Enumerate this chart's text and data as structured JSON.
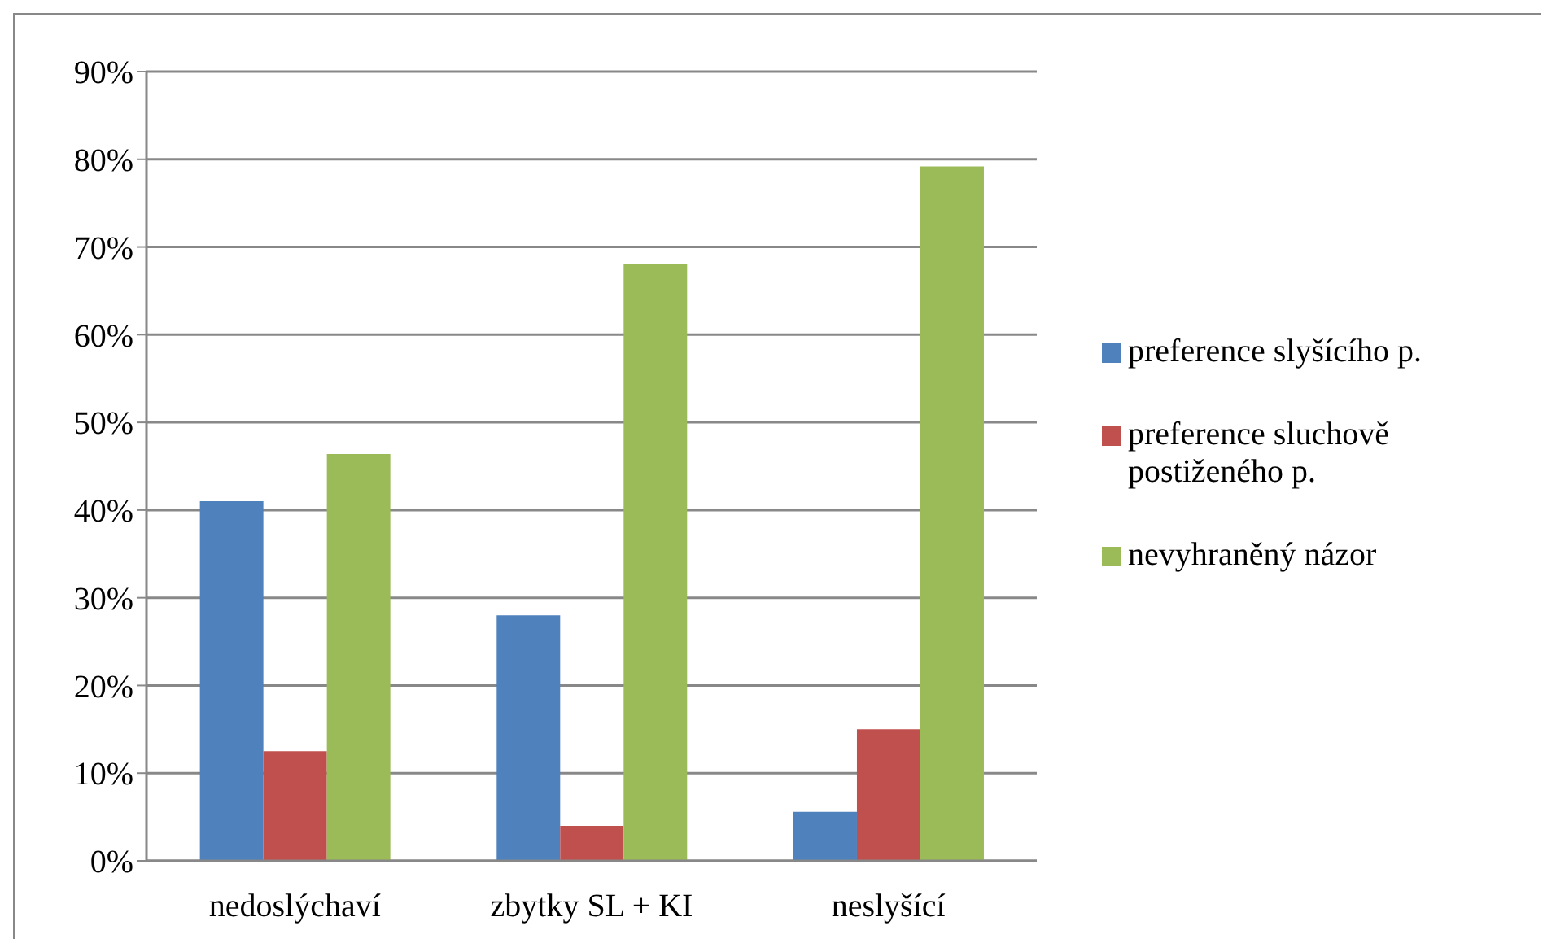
{
  "chart_data": {
    "type": "bar",
    "categories": [
      "nedoslýchaví",
      "zbytky SL + KI",
      "neslyšící"
    ],
    "series": [
      {
        "name": "preference slyšícího p.",
        "color": "#4f81bd",
        "values": [
          41,
          28,
          5.6
        ]
      },
      {
        "name": "preference sluchově postiženého p.",
        "color": "#c0504d",
        "values": [
          12.5,
          4,
          15
        ]
      },
      {
        "name": "nevyhraněný názor",
        "color": "#9bbb59",
        "values": [
          46.4,
          68,
          79.2
        ]
      }
    ],
    "ylim": [
      0,
      90
    ],
    "yticks": [
      {
        "value": 0,
        "label": "0%"
      },
      {
        "value": 10,
        "label": "10%"
      },
      {
        "value": 20,
        "label": "20%"
      },
      {
        "value": 30,
        "label": "30%"
      },
      {
        "value": 40,
        "label": "40%"
      },
      {
        "value": 50,
        "label": "50%"
      },
      {
        "value": 60,
        "label": "60%"
      },
      {
        "value": 70,
        "label": "70%"
      },
      {
        "value": 80,
        "label": "80%"
      },
      {
        "value": 90,
        "label": "90%"
      }
    ],
    "grid": "y",
    "legend": "right"
  }
}
